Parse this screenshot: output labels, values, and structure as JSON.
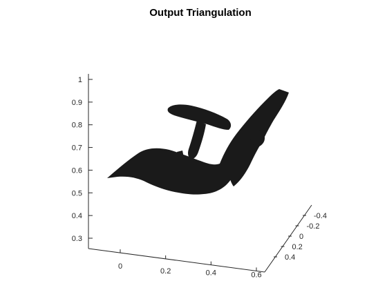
{
  "chart_data": {
    "type": "surface",
    "title": "Output Triangulation",
    "xlabel": "",
    "ylabel": "",
    "zlabel": "",
    "grid": false,
    "x_ticks": [
      "0",
      "0.2",
      "0.4",
      "0.6"
    ],
    "y_ticks": [
      "-0.4",
      "-0.2",
      "0",
      "0.2",
      "0.4"
    ],
    "z_ticks": [
      "0.3",
      "0.4",
      "0.5",
      "0.6",
      "0.7",
      "0.8",
      "0.9",
      "1"
    ],
    "xlim": [
      -0.15,
      0.62
    ],
    "ylim": [
      -0.5,
      0.45
    ],
    "zlim": [
      0.23,
      1.02
    ],
    "surface_color": "#1a1a1a",
    "axis_color": "#262626",
    "object": "chair-shaped triangulated mesh (seat, backrest, armrest)"
  }
}
